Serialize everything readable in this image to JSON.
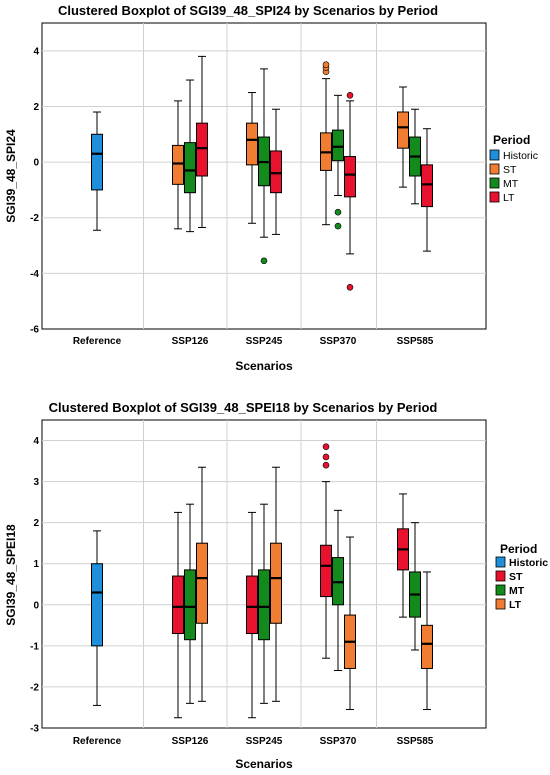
{
  "chart_data": [
    {
      "type": "boxplot",
      "title": "Clustered Boxplot of SGI39_48_SPI24 by Scenarios by Period",
      "xlabel": "Scenarios",
      "ylabel": "SGI39_48_SPI24",
      "ylim": [
        -6,
        5
      ],
      "yticks": [
        -6,
        -4,
        -2,
        0,
        2,
        4
      ],
      "grid": true,
      "categories": [
        "Reference",
        "SSP126",
        "SSP245",
        "SSP370",
        "SSP585"
      ],
      "legend": {
        "title": "Period",
        "placement": "right",
        "bold_labels": false,
        "entries": [
          {
            "name": "Historic",
            "color": "#1f8fdc"
          },
          {
            "name": "ST",
            "color": "#f07d31"
          },
          {
            "name": "MT",
            "color": "#138a1c"
          },
          {
            "name": "LT",
            "color": "#e8122f"
          }
        ]
      },
      "boxes": [
        {
          "category": "Reference",
          "period": "Historic",
          "min": -2.45,
          "q1": -1.0,
          "median": 0.3,
          "q3": 1.0,
          "max": 1.8,
          "outliers": []
        },
        {
          "category": "SSP126",
          "period": "ST",
          "min": -2.4,
          "q1": -0.8,
          "median": -0.05,
          "q3": 0.6,
          "max": 2.2,
          "outliers": []
        },
        {
          "category": "SSP126",
          "period": "MT",
          "min": -2.5,
          "q1": -1.1,
          "median": -0.3,
          "q3": 0.7,
          "max": 2.95,
          "outliers": []
        },
        {
          "category": "SSP126",
          "period": "LT",
          "min": -2.35,
          "q1": -0.5,
          "median": 0.5,
          "q3": 1.4,
          "max": 3.8,
          "outliers": []
        },
        {
          "category": "SSP245",
          "period": "ST",
          "min": -2.2,
          "q1": -0.1,
          "median": 0.8,
          "q3": 1.4,
          "max": 2.5,
          "outliers": []
        },
        {
          "category": "SSP245",
          "period": "MT",
          "min": -2.7,
          "q1": -0.85,
          "median": 0.0,
          "q3": 0.9,
          "max": 3.35,
          "outliers": [
            -3.55
          ]
        },
        {
          "category": "SSP245",
          "period": "LT",
          "min": -2.6,
          "q1": -1.1,
          "median": -0.4,
          "q3": 0.4,
          "max": 1.9,
          "outliers": []
        },
        {
          "category": "SSP370",
          "period": "ST",
          "min": -2.25,
          "q1": -0.3,
          "median": 0.35,
          "q3": 1.05,
          "max": 3.0,
          "outliers": [
            3.25,
            3.4,
            3.5
          ]
        },
        {
          "category": "SSP370",
          "period": "MT",
          "min": -1.2,
          "q1": 0.05,
          "median": 0.55,
          "q3": 1.15,
          "max": 2.4,
          "outliers": [
            -1.8,
            -2.3
          ]
        },
        {
          "category": "SSP370",
          "period": "LT",
          "min": -3.3,
          "q1": -1.25,
          "median": -0.45,
          "q3": 0.2,
          "max": 2.2,
          "outliers": [
            2.4,
            -4.5
          ]
        },
        {
          "category": "SSP585",
          "period": "ST",
          "min": -0.9,
          "q1": 0.5,
          "median": 1.25,
          "q3": 1.8,
          "max": 2.7,
          "outliers": []
        },
        {
          "category": "SSP585",
          "period": "MT",
          "min": -1.5,
          "q1": -0.5,
          "median": 0.2,
          "q3": 0.9,
          "max": 1.9,
          "outliers": []
        },
        {
          "category": "SSP585",
          "period": "LT",
          "min": -3.2,
          "q1": -1.6,
          "median": -0.8,
          "q3": -0.1,
          "max": 1.2,
          "outliers": []
        }
      ]
    },
    {
      "type": "boxplot",
      "title": "Clustered Boxplot of SGI39_48_SPEI18 by Scenarios by Period",
      "xlabel": "Scenarios",
      "ylabel": "SGI39_48_SPEI18",
      "ylim": [
        -3,
        4.5
      ],
      "yticks": [
        -3,
        -2,
        -1,
        0,
        1,
        2,
        3,
        4
      ],
      "grid": true,
      "categories": [
        "Reference",
        "SSP126",
        "SSP245",
        "SSP370",
        "SSP585"
      ],
      "legend": {
        "title": "Period",
        "placement": "right",
        "bold_labels": true,
        "entries": [
          {
            "name": "Historic",
            "color": "#1f8fdc"
          },
          {
            "name": "ST",
            "color": "#e8122f"
          },
          {
            "name": "MT",
            "color": "#138a1c"
          },
          {
            "name": "LT",
            "color": "#f07d31"
          }
        ]
      },
      "boxes": [
        {
          "category": "Reference",
          "period": "Historic",
          "min": -2.45,
          "q1": -1.0,
          "median": 0.3,
          "q3": 1.0,
          "max": 1.8,
          "outliers": []
        },
        {
          "category": "SSP126",
          "period": "ST",
          "min": -2.75,
          "q1": -0.7,
          "median": -0.05,
          "q3": 0.7,
          "max": 2.25,
          "outliers": []
        },
        {
          "category": "SSP126",
          "period": "MT",
          "min": -2.4,
          "q1": -0.85,
          "median": -0.05,
          "q3": 0.85,
          "max": 2.45,
          "outliers": []
        },
        {
          "category": "SSP126",
          "period": "LT",
          "min": -2.35,
          "q1": -0.45,
          "median": 0.65,
          "q3": 1.5,
          "max": 3.35,
          "outliers": []
        },
        {
          "category": "SSP245",
          "period": "ST",
          "min": -2.75,
          "q1": -0.7,
          "median": -0.05,
          "q3": 0.7,
          "max": 2.25,
          "outliers": []
        },
        {
          "category": "SSP245",
          "period": "MT",
          "min": -2.4,
          "q1": -0.85,
          "median": -0.05,
          "q3": 0.85,
          "max": 2.45,
          "outliers": []
        },
        {
          "category": "SSP245",
          "period": "LT",
          "min": -2.35,
          "q1": -0.45,
          "median": 0.65,
          "q3": 1.5,
          "max": 3.35,
          "outliers": []
        },
        {
          "category": "SSP370",
          "period": "ST",
          "min": -1.3,
          "q1": 0.2,
          "median": 0.95,
          "q3": 1.45,
          "max": 3.0,
          "outliers": [
            3.4,
            3.6,
            3.85
          ]
        },
        {
          "category": "SSP370",
          "period": "MT",
          "min": -1.6,
          "q1": 0.0,
          "median": 0.55,
          "q3": 1.15,
          "max": 2.3,
          "outliers": []
        },
        {
          "category": "SSP370",
          "period": "LT",
          "min": -2.55,
          "q1": -1.55,
          "median": -0.9,
          "q3": -0.25,
          "max": 1.65,
          "outliers": []
        },
        {
          "category": "SSP585",
          "period": "ST",
          "min": -0.3,
          "q1": 0.85,
          "median": 1.35,
          "q3": 1.85,
          "max": 2.7,
          "outliers": []
        },
        {
          "category": "SSP585",
          "period": "MT",
          "min": -1.1,
          "q1": -0.3,
          "median": 0.25,
          "q3": 0.8,
          "max": 2.0,
          "outliers": []
        },
        {
          "category": "SSP585",
          "period": "LT",
          "min": -2.55,
          "q1": -1.55,
          "median": -0.95,
          "q3": -0.5,
          "max": 0.8,
          "outliers": []
        }
      ]
    }
  ]
}
